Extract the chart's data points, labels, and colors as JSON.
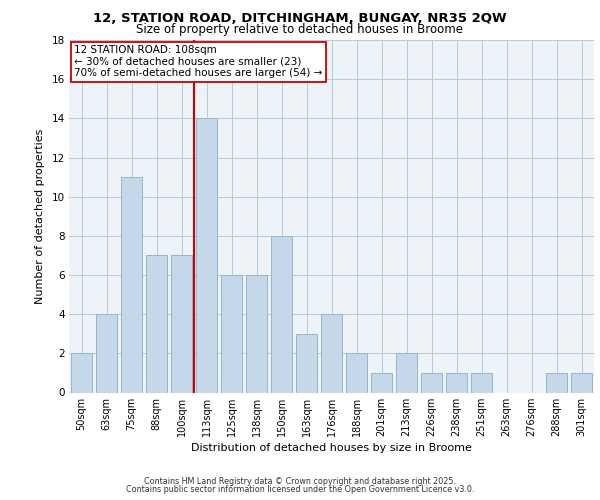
{
  "title_line1": "12, STATION ROAD, DITCHINGHAM, BUNGAY, NR35 2QW",
  "title_line2": "Size of property relative to detached houses in Broome",
  "bar_labels": [
    "50sqm",
    "63sqm",
    "75sqm",
    "88sqm",
    "100sqm",
    "113sqm",
    "125sqm",
    "138sqm",
    "150sqm",
    "163sqm",
    "176sqm",
    "188sqm",
    "201sqm",
    "213sqm",
    "226sqm",
    "238sqm",
    "251sqm",
    "263sqm",
    "276sqm",
    "288sqm",
    "301sqm"
  ],
  "bar_values": [
    2,
    4,
    11,
    7,
    7,
    14,
    6,
    6,
    8,
    3,
    4,
    2,
    1,
    2,
    1,
    1,
    1,
    0,
    0,
    1,
    1
  ],
  "bar_color": "#c5d8ea",
  "bar_edge_color": "#9ab4cc",
  "xlabel": "Distribution of detached houses by size in Broome",
  "ylabel": "Number of detached properties",
  "ylim": [
    0,
    18
  ],
  "yticks": [
    0,
    2,
    4,
    6,
    8,
    10,
    12,
    14,
    16,
    18
  ],
  "property_line_color": "#cc0000",
  "annotation_box_text": "12 STATION ROAD: 108sqm\n← 30% of detached houses are smaller (23)\n70% of semi-detached houses are larger (54) →",
  "grid_color": "#b8c8dc",
  "background_color": "#eef3f8",
  "footer_line1": "Contains HM Land Registry data © Crown copyright and database right 2025.",
  "footer_line2": "Contains public sector information licensed under the Open Government Licence v3.0."
}
